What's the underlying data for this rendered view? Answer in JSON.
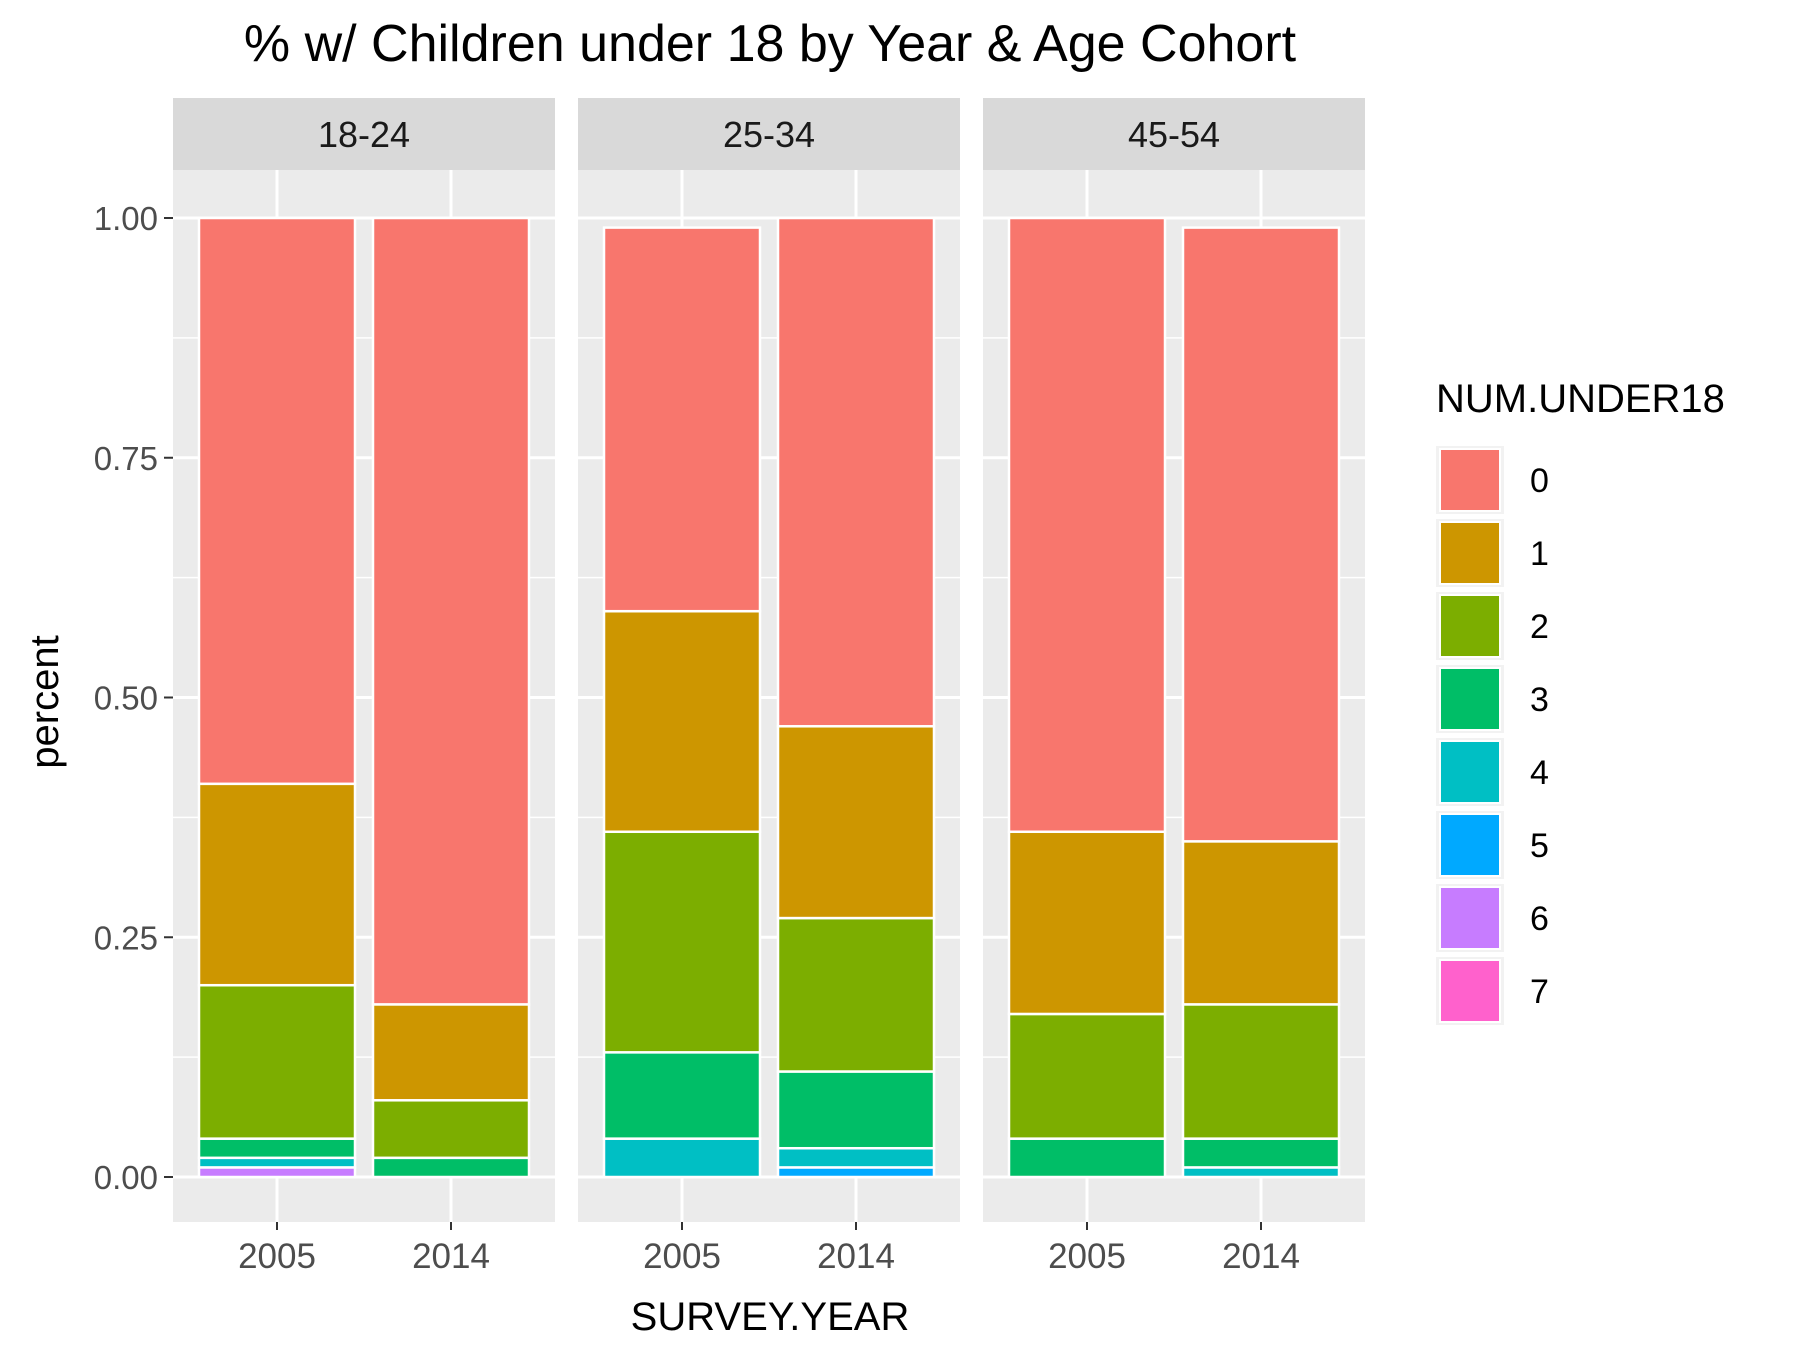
{
  "chart_data": {
    "type": "bar",
    "stacked": true,
    "title": "% w/ Children under 18 by Year & Age Cohort",
    "xlabel": "SURVEY.YEAR",
    "ylabel": "percent",
    "ylim": [
      0,
      1
    ],
    "y_ticks": [
      "0.00",
      "0.25",
      "0.50",
      "0.75",
      "1.00"
    ],
    "y_tick_values": [
      0,
      0.25,
      0.5,
      0.75,
      1.0
    ],
    "grid": true,
    "legend_position": "right",
    "legend": {
      "title": "NUM.UNDER18",
      "items": [
        {
          "key": "0",
          "color": "#F8766D"
        },
        {
          "key": "1",
          "color": "#CD9600"
        },
        {
          "key": "2",
          "color": "#7CAE00"
        },
        {
          "key": "3",
          "color": "#00BE67"
        },
        {
          "key": "4",
          "color": "#00BFC4"
        },
        {
          "key": "5",
          "color": "#00A9FF"
        },
        {
          "key": "6",
          "color": "#C77CFF"
        },
        {
          "key": "7",
          "color": "#FF61CC"
        }
      ]
    },
    "categories": [
      "2005",
      "2014"
    ],
    "panels": [
      {
        "name": "18-24",
        "bars": [
          {
            "x": "2005",
            "segments": [
              {
                "key": "6",
                "value": 0.01
              },
              {
                "key": "4",
                "value": 0.01
              },
              {
                "key": "3",
                "value": 0.02
              },
              {
                "key": "2",
                "value": 0.16
              },
              {
                "key": "1",
                "value": 0.21
              },
              {
                "key": "0",
                "value": 0.59
              }
            ]
          },
          {
            "x": "2014",
            "segments": [
              {
                "key": "3",
                "value": 0.02
              },
              {
                "key": "2",
                "value": 0.06
              },
              {
                "key": "1",
                "value": 0.1
              },
              {
                "key": "0",
                "value": 0.82
              }
            ]
          }
        ]
      },
      {
        "name": "25-34",
        "bars": [
          {
            "x": "2005",
            "segments": [
              {
                "key": "4",
                "value": 0.04
              },
              {
                "key": "3",
                "value": 0.09
              },
              {
                "key": "2",
                "value": 0.23
              },
              {
                "key": "1",
                "value": 0.23
              },
              {
                "key": "0",
                "value": 0.4
              }
            ]
          },
          {
            "x": "2014",
            "segments": [
              {
                "key": "5",
                "value": 0.01
              },
              {
                "key": "4",
                "value": 0.02
              },
              {
                "key": "3",
                "value": 0.08
              },
              {
                "key": "2",
                "value": 0.16
              },
              {
                "key": "1",
                "value": 0.2
              },
              {
                "key": "0",
                "value": 0.53
              }
            ]
          }
        ]
      },
      {
        "name": "45-54",
        "bars": [
          {
            "x": "2005",
            "segments": [
              {
                "key": "3",
                "value": 0.04
              },
              {
                "key": "2",
                "value": 0.13
              },
              {
                "key": "1",
                "value": 0.19
              },
              {
                "key": "0",
                "value": 0.64
              }
            ]
          },
          {
            "x": "2014",
            "segments": [
              {
                "key": "4",
                "value": 0.01
              },
              {
                "key": "3",
                "value": 0.03
              },
              {
                "key": "2",
                "value": 0.14
              },
              {
                "key": "1",
                "value": 0.17
              },
              {
                "key": "0",
                "value": 0.64
              }
            ]
          }
        ]
      }
    ]
  }
}
